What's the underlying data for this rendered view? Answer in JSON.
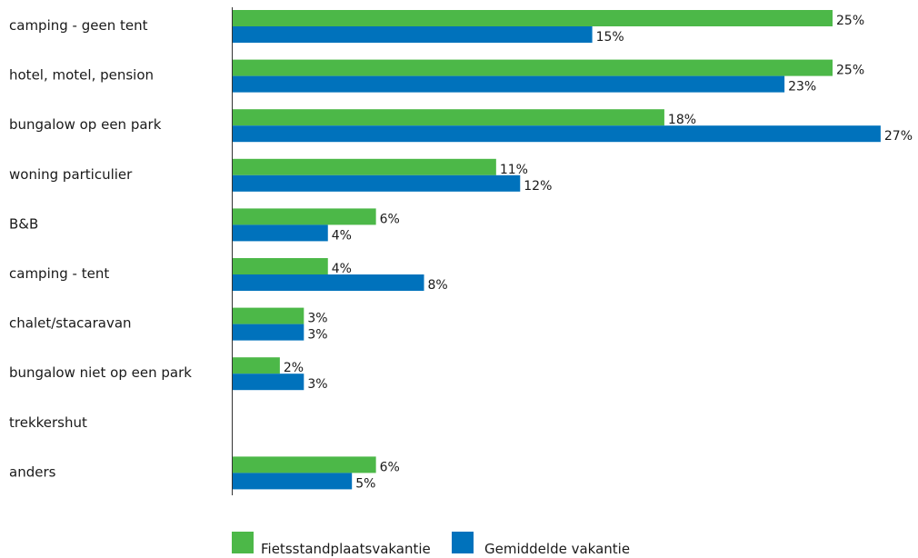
{
  "chart_data": {
    "type": "bar",
    "orientation": "horizontal",
    "categories": [
      "camping - geen tent",
      "hotel, motel, pension",
      "bungalow op een park",
      "woning particulier",
      "B&B",
      "camping - tent",
      "chalet/stacaravan",
      "bungalow niet op een park",
      "trekkershut",
      "anders"
    ],
    "series": [
      {
        "name": "Fietsstandplaatsvakantie",
        "color": "#4cb848",
        "values": [
          25,
          25,
          18,
          11,
          6,
          4,
          3,
          2,
          null,
          6
        ],
        "labels": [
          "25%",
          "25%",
          "18%",
          "11%",
          "6%",
          "4%",
          "3%",
          "2%",
          "",
          "6%"
        ]
      },
      {
        "name": "Gemiddelde vakantie",
        "color": "#0072bc",
        "values": [
          15,
          23,
          27,
          12,
          4,
          8,
          3,
          3,
          null,
          5
        ],
        "labels": [
          "15%",
          "23%",
          "27%",
          "12%",
          "4%",
          "8%",
          "3%",
          "3%",
          "",
          "5%"
        ]
      }
    ],
    "xlim": [
      0,
      27
    ],
    "grid": false,
    "legend": "bottom",
    "title": "",
    "xlabel": "",
    "ylabel": ""
  }
}
